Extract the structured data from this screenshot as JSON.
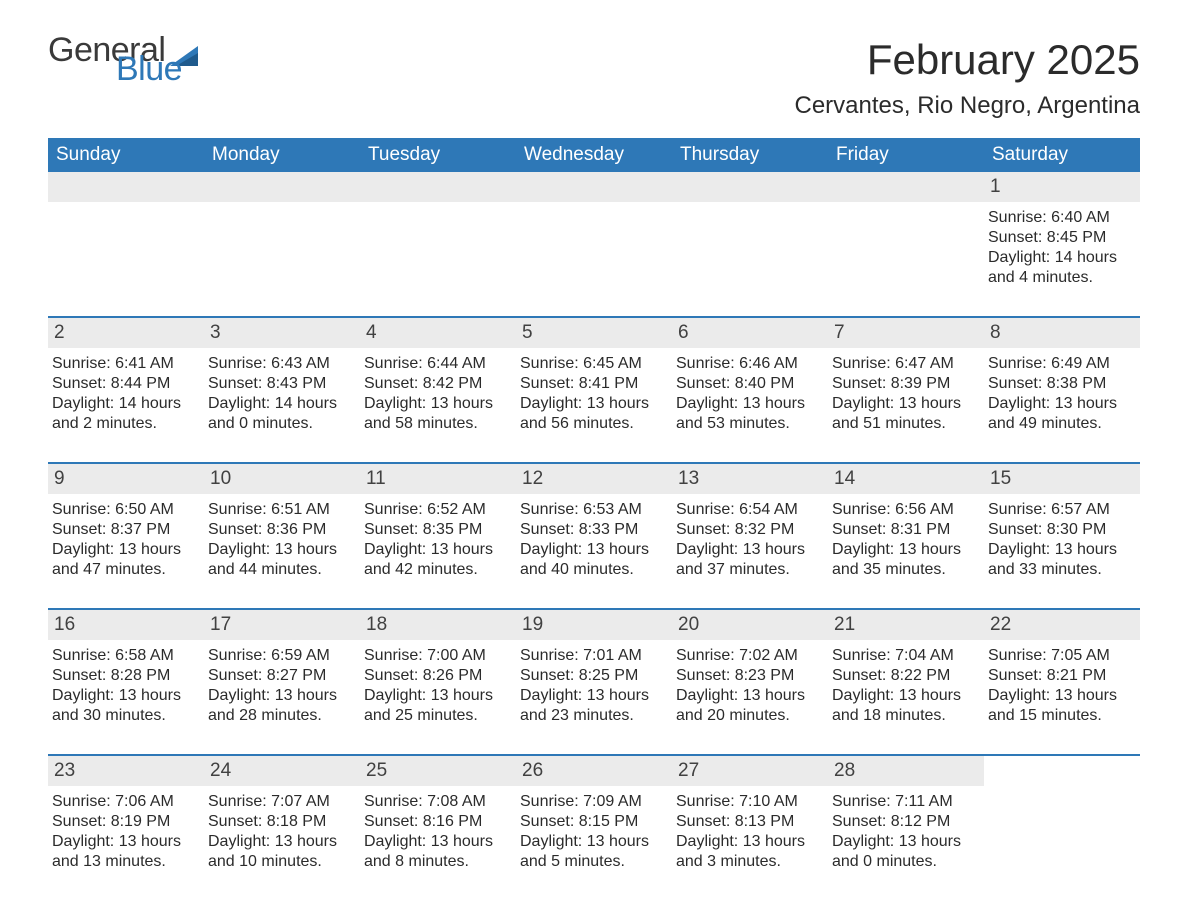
{
  "logo": {
    "part1": "General",
    "part2": "Blue"
  },
  "title": "February 2025",
  "subtitle": "Cervantes, Rio Negro, Argentina",
  "colors": {
    "header_bg": "#2e78b7",
    "daynum_bg": "#ebebeb",
    "week_border": "#2e78b7",
    "text": "#2b2b2b",
    "logo_gray": "#3a3a3a",
    "logo_blue": "#2e78b7",
    "page_bg": "#ffffff"
  },
  "fontsizes": {
    "title": 42,
    "subtitle": 24,
    "dow": 19,
    "daynum": 19,
    "info": 16,
    "logo": 34
  },
  "days_of_week": [
    "Sunday",
    "Monday",
    "Tuesday",
    "Wednesday",
    "Thursday",
    "Friday",
    "Saturday"
  ],
  "weeks": [
    [
      null,
      null,
      null,
      null,
      null,
      null,
      {
        "n": "1",
        "sunrise": "Sunrise: 6:40 AM",
        "sunset": "Sunset: 8:45 PM",
        "day1": "Daylight: 14 hours",
        "day2": "and 4 minutes."
      }
    ],
    [
      {
        "n": "2",
        "sunrise": "Sunrise: 6:41 AM",
        "sunset": "Sunset: 8:44 PM",
        "day1": "Daylight: 14 hours",
        "day2": "and 2 minutes."
      },
      {
        "n": "3",
        "sunrise": "Sunrise: 6:43 AM",
        "sunset": "Sunset: 8:43 PM",
        "day1": "Daylight: 14 hours",
        "day2": "and 0 minutes."
      },
      {
        "n": "4",
        "sunrise": "Sunrise: 6:44 AM",
        "sunset": "Sunset: 8:42 PM",
        "day1": "Daylight: 13 hours",
        "day2": "and 58 minutes."
      },
      {
        "n": "5",
        "sunrise": "Sunrise: 6:45 AM",
        "sunset": "Sunset: 8:41 PM",
        "day1": "Daylight: 13 hours",
        "day2": "and 56 minutes."
      },
      {
        "n": "6",
        "sunrise": "Sunrise: 6:46 AM",
        "sunset": "Sunset: 8:40 PM",
        "day1": "Daylight: 13 hours",
        "day2": "and 53 minutes."
      },
      {
        "n": "7",
        "sunrise": "Sunrise: 6:47 AM",
        "sunset": "Sunset: 8:39 PM",
        "day1": "Daylight: 13 hours",
        "day2": "and 51 minutes."
      },
      {
        "n": "8",
        "sunrise": "Sunrise: 6:49 AM",
        "sunset": "Sunset: 8:38 PM",
        "day1": "Daylight: 13 hours",
        "day2": "and 49 minutes."
      }
    ],
    [
      {
        "n": "9",
        "sunrise": "Sunrise: 6:50 AM",
        "sunset": "Sunset: 8:37 PM",
        "day1": "Daylight: 13 hours",
        "day2": "and 47 minutes."
      },
      {
        "n": "10",
        "sunrise": "Sunrise: 6:51 AM",
        "sunset": "Sunset: 8:36 PM",
        "day1": "Daylight: 13 hours",
        "day2": "and 44 minutes."
      },
      {
        "n": "11",
        "sunrise": "Sunrise: 6:52 AM",
        "sunset": "Sunset: 8:35 PM",
        "day1": "Daylight: 13 hours",
        "day2": "and 42 minutes."
      },
      {
        "n": "12",
        "sunrise": "Sunrise: 6:53 AM",
        "sunset": "Sunset: 8:33 PM",
        "day1": "Daylight: 13 hours",
        "day2": "and 40 minutes."
      },
      {
        "n": "13",
        "sunrise": "Sunrise: 6:54 AM",
        "sunset": "Sunset: 8:32 PM",
        "day1": "Daylight: 13 hours",
        "day2": "and 37 minutes."
      },
      {
        "n": "14",
        "sunrise": "Sunrise: 6:56 AM",
        "sunset": "Sunset: 8:31 PM",
        "day1": "Daylight: 13 hours",
        "day2": "and 35 minutes."
      },
      {
        "n": "15",
        "sunrise": "Sunrise: 6:57 AM",
        "sunset": "Sunset: 8:30 PM",
        "day1": "Daylight: 13 hours",
        "day2": "and 33 minutes."
      }
    ],
    [
      {
        "n": "16",
        "sunrise": "Sunrise: 6:58 AM",
        "sunset": "Sunset: 8:28 PM",
        "day1": "Daylight: 13 hours",
        "day2": "and 30 minutes."
      },
      {
        "n": "17",
        "sunrise": "Sunrise: 6:59 AM",
        "sunset": "Sunset: 8:27 PM",
        "day1": "Daylight: 13 hours",
        "day2": "and 28 minutes."
      },
      {
        "n": "18",
        "sunrise": "Sunrise: 7:00 AM",
        "sunset": "Sunset: 8:26 PM",
        "day1": "Daylight: 13 hours",
        "day2": "and 25 minutes."
      },
      {
        "n": "19",
        "sunrise": "Sunrise: 7:01 AM",
        "sunset": "Sunset: 8:25 PM",
        "day1": "Daylight: 13 hours",
        "day2": "and 23 minutes."
      },
      {
        "n": "20",
        "sunrise": "Sunrise: 7:02 AM",
        "sunset": "Sunset: 8:23 PM",
        "day1": "Daylight: 13 hours",
        "day2": "and 20 minutes."
      },
      {
        "n": "21",
        "sunrise": "Sunrise: 7:04 AM",
        "sunset": "Sunset: 8:22 PM",
        "day1": "Daylight: 13 hours",
        "day2": "and 18 minutes."
      },
      {
        "n": "22",
        "sunrise": "Sunrise: 7:05 AM",
        "sunset": "Sunset: 8:21 PM",
        "day1": "Daylight: 13 hours",
        "day2": "and 15 minutes."
      }
    ],
    [
      {
        "n": "23",
        "sunrise": "Sunrise: 7:06 AM",
        "sunset": "Sunset: 8:19 PM",
        "day1": "Daylight: 13 hours",
        "day2": "and 13 minutes."
      },
      {
        "n": "24",
        "sunrise": "Sunrise: 7:07 AM",
        "sunset": "Sunset: 8:18 PM",
        "day1": "Daylight: 13 hours",
        "day2": "and 10 minutes."
      },
      {
        "n": "25",
        "sunrise": "Sunrise: 7:08 AM",
        "sunset": "Sunset: 8:16 PM",
        "day1": "Daylight: 13 hours",
        "day2": "and 8 minutes."
      },
      {
        "n": "26",
        "sunrise": "Sunrise: 7:09 AM",
        "sunset": "Sunset: 8:15 PM",
        "day1": "Daylight: 13 hours",
        "day2": "and 5 minutes."
      },
      {
        "n": "27",
        "sunrise": "Sunrise: 7:10 AM",
        "sunset": "Sunset: 8:13 PM",
        "day1": "Daylight: 13 hours",
        "day2": "and 3 minutes."
      },
      {
        "n": "28",
        "sunrise": "Sunrise: 7:11 AM",
        "sunset": "Sunset: 8:12 PM",
        "day1": "Daylight: 13 hours",
        "day2": "and 0 minutes."
      },
      null
    ]
  ]
}
